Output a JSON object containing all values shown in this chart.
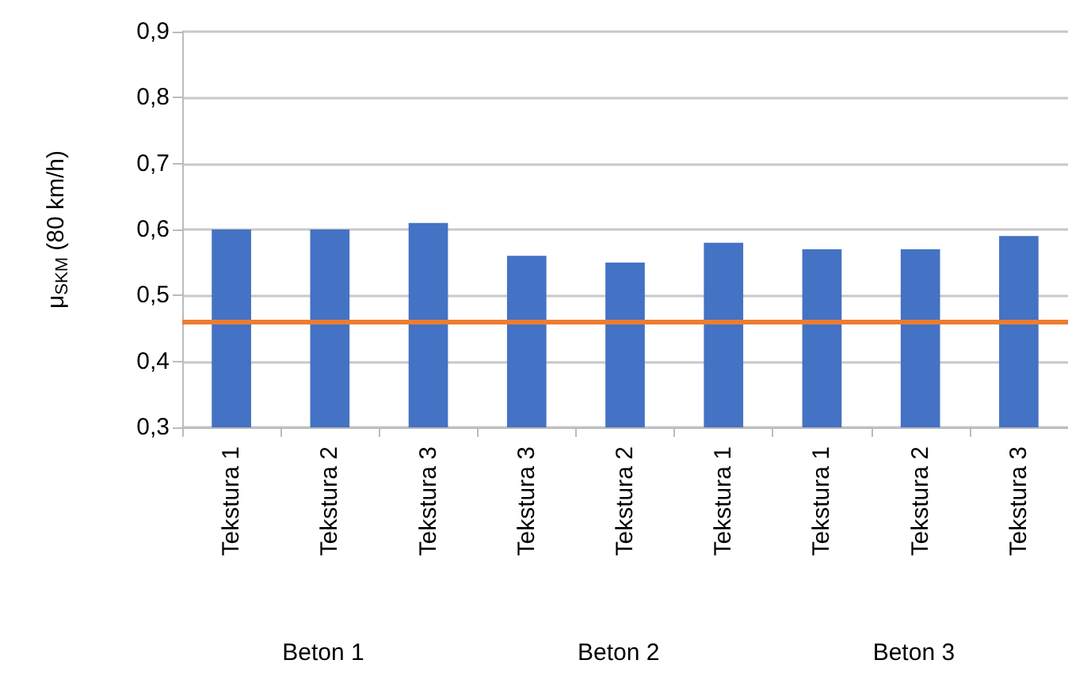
{
  "chart_data": {
    "type": "bar",
    "ylabel": "μ$_{SKM}$ (80 km/h)",
    "categories": [
      "Tekstura 1",
      "Tekstura 2",
      "Tekstura 3",
      "Tekstura 3",
      "Tekstura 2",
      "Tekstura 1",
      "Tekstura 1",
      "Tekstura 2",
      "Tekstura 3"
    ],
    "values": [
      0.6,
      0.6,
      0.61,
      0.56,
      0.55,
      0.58,
      0.57,
      0.57,
      0.59
    ],
    "color": "#4472c4",
    "ylim": [
      0.3,
      0.9
    ],
    "yticks": [
      {
        "value": 0.3,
        "label": "0,3"
      },
      {
        "value": 0.4,
        "label": "0,4"
      },
      {
        "value": 0.5,
        "label": "0,5"
      },
      {
        "value": 0.6,
        "label": "0,6"
      },
      {
        "value": 0.7,
        "label": "0,7"
      },
      {
        "value": 0.8,
        "label": "0,8"
      },
      {
        "value": 0.9,
        "label": "0,9"
      }
    ],
    "ref_lines": [
      {
        "axis": "y",
        "value": 0.46,
        "color": "#ed7d31"
      }
    ],
    "annotations": [
      "Beton 1",
      "Beton 2",
      "Beton 3"
    ],
    "grid": "y"
  }
}
